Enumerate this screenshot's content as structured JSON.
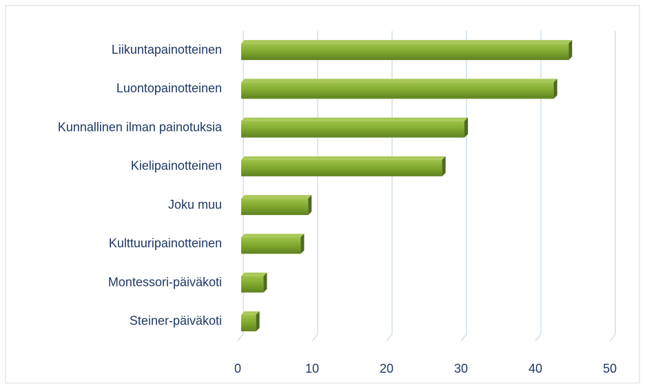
{
  "chart_data": {
    "type": "bar",
    "orientation": "horizontal",
    "categories": [
      "Liikuntapainotteinen",
      "Luontopainotteinen",
      "Kunnallinen ilman painotuksia",
      "Kielipainotteinen",
      "Joku muu",
      "Kulttuuripainotteinen",
      "Montessori-päiväkoti",
      "Steiner-päiväkoti"
    ],
    "values": [
      44,
      42,
      30,
      27,
      9,
      8,
      3,
      2
    ],
    "color": "#7fa72e",
    "xlim": [
      0,
      50
    ],
    "xticks": [
      0,
      10,
      20,
      30,
      40,
      50
    ],
    "grid": true
  }
}
